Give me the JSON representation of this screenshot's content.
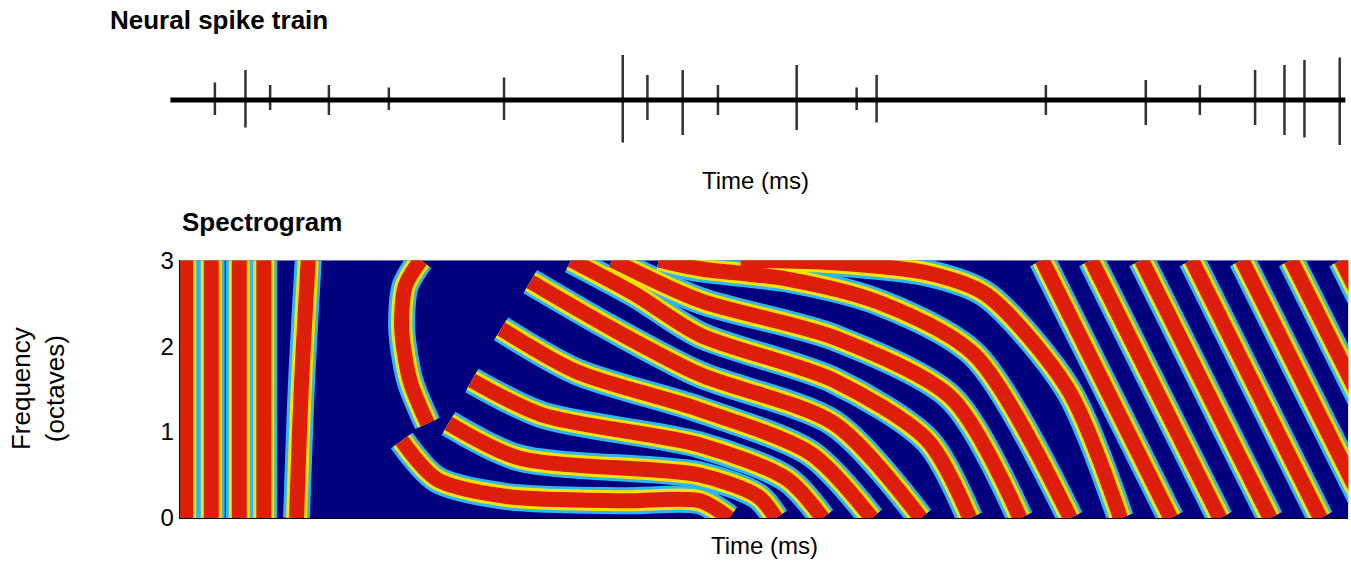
{
  "chart_data": [
    {
      "type": "line",
      "title": "Neural spike train",
      "x_label": "Time (ms)",
      "xlim": [
        0,
        1000
      ],
      "ylim": [
        -1,
        1
      ],
      "tick_labels": false,
      "grid": false,
      "color": "#000000",
      "spikes": {
        "t": [
          38,
          64,
          85,
          135,
          186,
          284,
          385,
          406,
          436,
          466,
          533,
          584,
          601,
          745,
          830,
          876,
          923,
          948,
          965,
          995
        ],
        "peak": [
          0.35,
          0.6,
          0.3,
          0.3,
          0.25,
          0.45,
          0.9,
          0.5,
          0.6,
          0.3,
          0.7,
          0.25,
          0.5,
          0.3,
          0.4,
          0.3,
          0.6,
          0.7,
          0.8,
          0.85
        ],
        "trough": [
          -0.3,
          -0.55,
          -0.2,
          -0.3,
          -0.2,
          -0.4,
          -0.85,
          -0.4,
          -0.7,
          -0.3,
          -0.6,
          -0.2,
          -0.45,
          -0.3,
          -0.5,
          -0.3,
          -0.5,
          -0.7,
          -0.75,
          -0.9
        ]
      }
    },
    {
      "type": "spectrogram",
      "title": "Spectrogram",
      "x_label": "Time (ms)",
      "y_label": "Frequency (octaves)",
      "xlim": [
        0,
        1000
      ],
      "ylim": [
        0,
        3
      ],
      "yticks": [
        0,
        1,
        2,
        3
      ],
      "tick_labels": "y",
      "grid": false,
      "color": "#dc1e0a",
      "ridges": [
        [
          [
            5,
            0
          ],
          [
            5,
            3
          ]
        ],
        [
          [
            27,
            0
          ],
          [
            27,
            3
          ]
        ],
        [
          [
            51,
            0
          ],
          [
            51,
            3
          ]
        ],
        [
          [
            72,
            0
          ],
          [
            72,
            3
          ]
        ],
        [
          [
            100,
            0
          ],
          [
            104,
            1.5
          ],
          [
            110,
            3
          ]
        ],
        [
          [
            212,
            1.1
          ],
          [
            197,
            1.6
          ],
          [
            190,
            2.2
          ],
          [
            193,
            2.7
          ],
          [
            206,
            3
          ]
        ],
        [
          [
            190,
            0.9
          ],
          [
            220,
            0.45
          ],
          [
            280,
            0.25
          ],
          [
            380,
            0.2
          ],
          [
            445,
            0.2
          ],
          [
            470,
            0
          ]
        ],
        [
          [
            230,
            1.1
          ],
          [
            290,
            0.7
          ],
          [
            445,
            0.5
          ],
          [
            495,
            0.25
          ],
          [
            510,
            0
          ]
        ],
        [
          [
            250,
            1.6
          ],
          [
            310,
            1.2
          ],
          [
            445,
            0.85
          ],
          [
            520,
            0.45
          ],
          [
            550,
            0
          ]
        ],
        [
          [
            275,
            2.2
          ],
          [
            340,
            1.7
          ],
          [
            445,
            1.26
          ],
          [
            540,
            0.75
          ],
          [
            592,
            0
          ]
        ],
        [
          [
            300,
            2.75
          ],
          [
            370,
            2.2
          ],
          [
            445,
            1.67
          ],
          [
            560,
            1.1
          ],
          [
            634,
            0
          ]
        ],
        [
          [
            335,
            3
          ],
          [
            390,
            2.6
          ],
          [
            445,
            2.13
          ],
          [
            560,
            1.6
          ],
          [
            640,
            0.9
          ],
          [
            676,
            0
          ]
        ],
        [
          [
            370,
            3
          ],
          [
            445,
            2.53
          ],
          [
            560,
            2.1
          ],
          [
            660,
            1.4
          ],
          [
            719,
            0
          ]
        ],
        [
          [
            410,
            3
          ],
          [
            445,
            2.9
          ],
          [
            520,
            2.78
          ],
          [
            600,
            2.5
          ],
          [
            680,
            1.9
          ],
          [
            762,
            0
          ]
        ],
        [
          [
            480,
            3
          ],
          [
            560,
            2.97
          ],
          [
            640,
            2.85
          ],
          [
            690,
            2.6
          ],
          [
            760,
            1.5
          ],
          [
            805,
            0
          ]
        ],
        [
          [
            738,
            3
          ],
          [
            848,
            0
          ]
        ],
        [
          [
            780,
            3
          ],
          [
            890,
            0
          ]
        ],
        [
          [
            823,
            3
          ],
          [
            933,
            0
          ]
        ],
        [
          [
            866,
            3
          ],
          [
            976,
            0
          ]
        ],
        [
          [
            909,
            3
          ],
          [
            1019,
            0
          ]
        ],
        [
          [
            951,
            3
          ],
          [
            1061,
            0
          ]
        ],
        [
          [
            994,
            3
          ],
          [
            1104,
            0
          ]
        ]
      ]
    }
  ]
}
